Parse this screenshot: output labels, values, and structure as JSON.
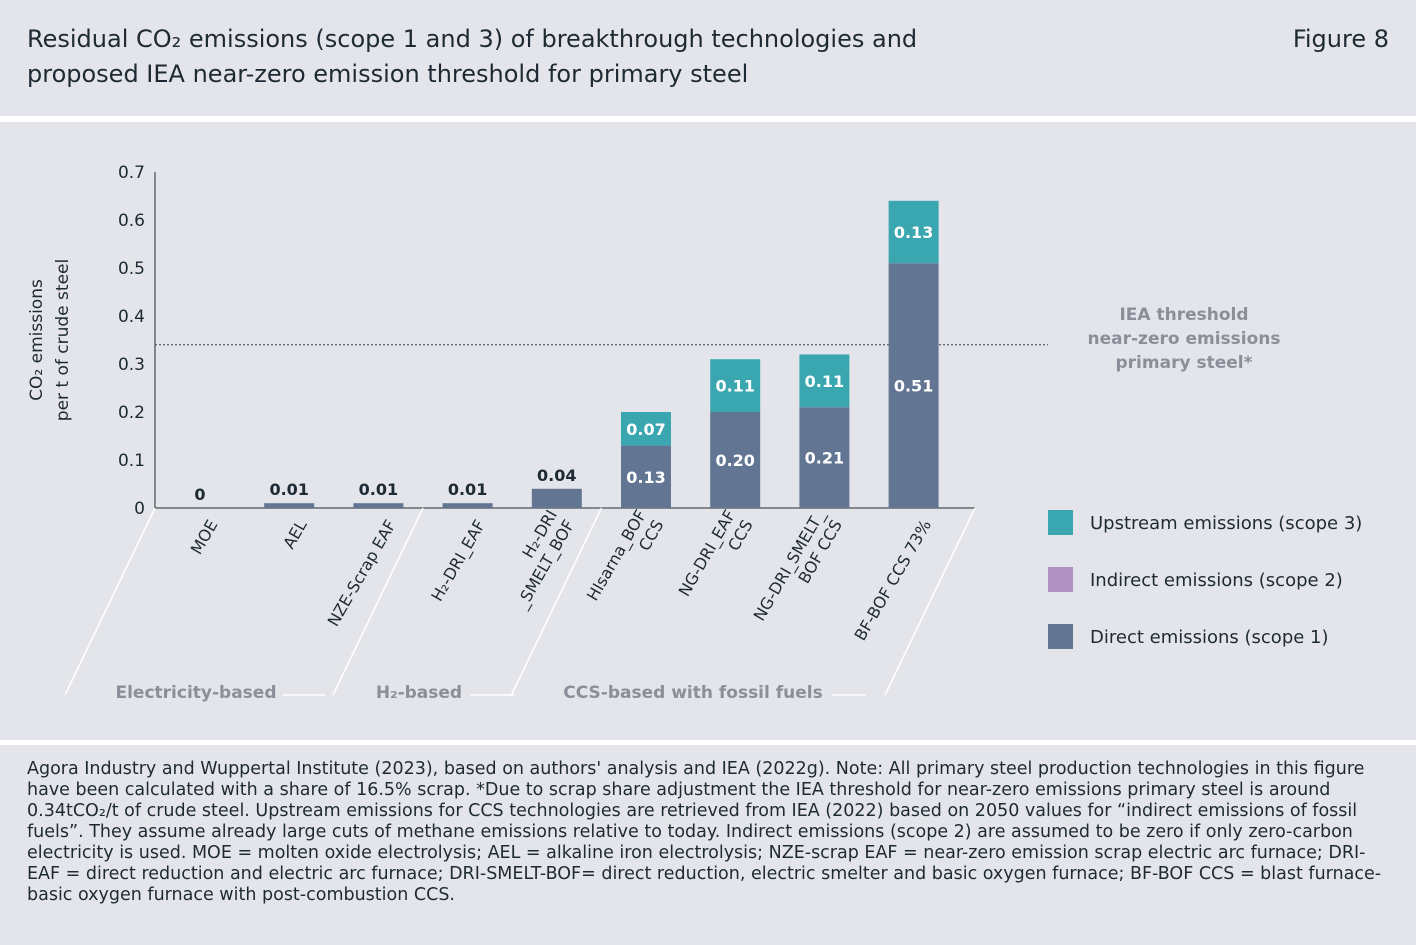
{
  "header": {
    "title_line1": "Residual CO₂ emissions (scope 1 and 3) of breakthrough technologies and",
    "title_line2": "proposed IEA near-zero emission threshold for primary steel",
    "figure_label": "Figure 8"
  },
  "colors": {
    "upstream": "#3aa7b0",
    "indirect": "#b08fc2",
    "direct": "#627593",
    "panel_bg": "#e4e5ea",
    "axis_text": "#1e2a33",
    "group_text": "#8a8f99"
  },
  "chart_data": {
    "type": "bar",
    "stacked": true,
    "ylabel_line1": "CO₂ emissions",
    "ylabel_line2": "per t of crude steel",
    "ylim": [
      0,
      0.7
    ],
    "yticks": [
      0,
      0.1,
      0.2,
      0.3,
      0.4,
      0.5,
      0.6,
      0.7
    ],
    "ytick_labels": [
      "0",
      "0.1",
      "0.2",
      "0.3",
      "0.4",
      "0.5",
      "0.6",
      "0.7"
    ],
    "categories": [
      [
        "MOE"
      ],
      [
        "AEL"
      ],
      [
        "NZE-Scrap EAF"
      ],
      [
        "H₂-DRI_EAF"
      ],
      [
        "H₂-DRI",
        "_SMELT_BOF"
      ],
      [
        "HIsarna_BOF",
        "CCS"
      ],
      [
        "NG-DRI_EAF",
        "CCS"
      ],
      [
        "NG-DRI_SMELT_",
        "BOF CCS"
      ],
      [
        "BF-BOF CCS 73%"
      ]
    ],
    "series": [
      {
        "name": "Direct emissions (scope 1)",
        "key": "direct",
        "values": [
          0,
          0.01,
          0.01,
          0.01,
          0.04,
          0.13,
          0.2,
          0.21,
          0.51
        ],
        "labels": [
          "",
          "",
          "",
          "",
          "",
          "0.13",
          "0.20",
          "0.21",
          "0.51"
        ]
      },
      {
        "name": "Indirect emissions (scope 2)",
        "key": "indirect",
        "values": [
          0,
          0,
          0,
          0,
          0,
          0,
          0,
          0,
          0
        ],
        "labels": [
          "",
          "",
          "",
          "",
          "",
          "",
          "",
          "",
          ""
        ]
      },
      {
        "name": "Upstream emissions (scope 3)",
        "key": "upstream",
        "values": [
          0,
          0,
          0,
          0,
          0,
          0.07,
          0.11,
          0.11,
          0.13
        ],
        "labels": [
          "",
          "",
          "",
          "",
          "",
          "0.07",
          "0.11",
          "0.11",
          "0.13"
        ]
      }
    ],
    "total_labels": [
      "0",
      "0.01",
      "0.01",
      "0.01",
      "0.04",
      "",
      "",
      "",
      ""
    ],
    "threshold": {
      "value": 0.34,
      "label_lines": [
        "IEA threshold",
        "near-zero emissions",
        "primary steel*"
      ]
    },
    "groups": [
      {
        "label": "Electricity-based",
        "from": 0,
        "to": 2
      },
      {
        "label": "H₂-based",
        "from": 3,
        "to": 4
      },
      {
        "label": "CCS-based with fossil fuels",
        "from": 5,
        "to": 8
      }
    ],
    "legend": {
      "placement": "right",
      "items": [
        {
          "label": "Upstream emissions (scope 3)",
          "key": "upstream"
        },
        {
          "label": "Indirect emissions (scope 2)",
          "key": "indirect"
        },
        {
          "label": "Direct emissions (scope 1)",
          "key": "direct"
        }
      ]
    }
  },
  "footer": {
    "source_text": "Agora Industry and Wuppertal Institute (2023), based on authors' analysis and IEA (2022g). Note: All primary steel production technologies in this figure have been calculated with a share of 16.5% scrap. *Due to scrap share adjustment the IEA threshold for near-zero emissions primary steel is around 0.34tCO₂/t of crude steel. Upstream emissions for CCS technologies are retrieved from IEA (2022) based on 2050 values for “indirect emissions of fossil fuels”. They assume already large cuts of methane emissions relative to today. Indirect emissions (scope 2) are assumed to be zero if only zero-carbon electricity is used. MOE = molten oxide electrolysis; AEL = alkaline iron electrolysis; NZE-scrap EAF = near-zero emission scrap electric arc furnace; DRI-EAF = direct reduction and electric arc furnace; DRI-SMELT-BOF= direct reduction, electric smelter and basic oxygen furnace; BF-BOF CCS = blast furnace-basic oxygen furnace with post-combustion CCS."
  }
}
